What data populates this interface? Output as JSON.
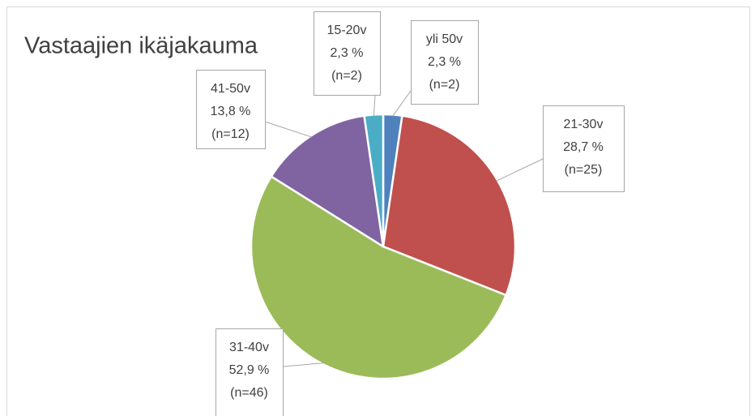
{
  "chart_data": {
    "type": "pie",
    "title": "Vastaajien ikäjakauma",
    "categories": [
      "yli 50v",
      "21-30v",
      "31-40v",
      "41-50v",
      "15-20v"
    ],
    "values": [
      2.3,
      28.7,
      52.9,
      13.8,
      2.3
    ],
    "value_labels": [
      "2,3 %",
      "28,7 %",
      "52,9 %",
      "13,8 %",
      "2,3 %"
    ],
    "count_labels": [
      "(n=2)",
      "(n=25)",
      "(n=46)",
      "(n=12)",
      "(n=2)"
    ],
    "colors": [
      "#4f81bd",
      "#c0504d",
      "#9bbb59",
      "#8064a2",
      "#4bacc6"
    ]
  }
}
